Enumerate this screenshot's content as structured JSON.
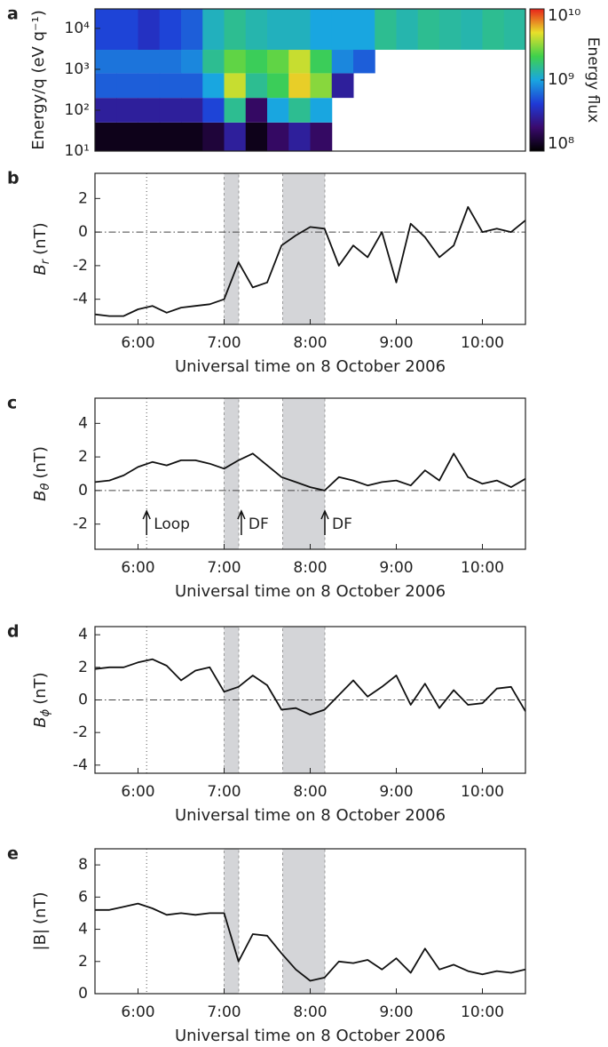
{
  "chart_data": [
    {
      "type": "heatmap",
      "panel_label": "a",
      "ylabel": "Energy/q (eV q⁻¹)",
      "xlim": [
        5.5,
        10.5
      ],
      "x_bins": [
        5.5,
        5.75,
        6.0,
        6.25,
        6.5,
        6.75,
        7.0,
        7.25,
        7.5,
        7.75,
        8.0,
        8.25,
        8.5,
        8.75,
        9.0,
        9.25,
        9.5,
        9.75,
        10.0,
        10.25,
        10.5
      ],
      "y_bins": [
        10,
        50,
        200,
        800,
        3000,
        30000
      ],
      "values": [
        [
          120000000.0,
          120000000.0,
          120000000.0,
          120000000.0,
          120000000.0,
          150000000.0,
          300000000.0,
          120000000.0,
          200000000.0,
          300000000.0,
          200000000.0,
          null,
          null,
          null,
          null,
          null,
          null,
          null,
          null,
          null
        ],
        [
          300000000.0,
          300000000.0,
          300000000.0,
          300000000.0,
          300000000.0,
          500000000.0,
          1500000000.0,
          200000000.0,
          1000000000.0,
          1500000000.0,
          1000000000.0,
          null,
          null,
          null,
          null,
          null,
          null,
          null,
          null,
          null
        ],
        [
          600000000.0,
          600000000.0,
          600000000.0,
          600000000.0,
          600000000.0,
          1000000000.0,
          4000000000.0,
          1500000000.0,
          2000000000.0,
          5000000000.0,
          3000000000.0,
          300000000.0,
          null,
          null,
          null,
          null,
          null,
          null,
          null,
          null
        ],
        [
          700000000.0,
          700000000.0,
          700000000.0,
          700000000.0,
          800000000.0,
          1500000000.0,
          2500000000.0,
          2000000000.0,
          2500000000.0,
          4000000000.0,
          2000000000.0,
          800000000.0,
          600000000.0,
          null,
          null,
          null,
          null,
          null,
          null,
          null
        ],
        [
          500000000.0,
          500000000.0,
          400000000.0,
          500000000.0,
          600000000.0,
          1200000000.0,
          1500000000.0,
          1300000000.0,
          1200000000.0,
          1200000000.0,
          1000000000.0,
          1000000000.0,
          1000000000.0,
          1500000000.0,
          1300000000.0,
          1500000000.0,
          1400000000.0,
          1300000000.0,
          1500000000.0,
          1400000000.0
        ]
      ],
      "log_y": true,
      "ylim": [
        10,
        30000
      ],
      "yticks": [
        {
          "value": 10,
          "label": "10¹"
        },
        {
          "value": 100,
          "label": "10²"
        },
        {
          "value": 1000,
          "label": "10³"
        },
        {
          "value": 10000,
          "label": "10⁴"
        }
      ],
      "log_z": true,
      "zlim": [
        100000000.0,
        10000000000.0
      ],
      "zticks": [
        {
          "value": 100000000.0,
          "label": "10⁸"
        },
        {
          "value": 1000000000.0,
          "label": "10⁹"
        },
        {
          "value": 10000000000.0,
          "label": "10¹⁰"
        }
      ],
      "zlabel": "Energy flux",
      "colormap": [
        "#000000",
        "#3a0a6e",
        "#1f3ad6",
        "#19a6e0",
        "#3fd14b",
        "#e8e02a",
        "#e8231a"
      ]
    },
    {
      "type": "line",
      "panel_label": "b",
      "ylabel": {
        "symbol": "B",
        "sub": "r",
        "unit": "(nT)"
      },
      "xlabel": "Universal time on 8 October 2006",
      "x": [
        5.5,
        5.667,
        5.833,
        6,
        6.167,
        6.333,
        6.5,
        6.667,
        6.833,
        7,
        7.167,
        7.333,
        7.5,
        7.667,
        7.833,
        8,
        8.167,
        8.333,
        8.5,
        8.667,
        8.833,
        9,
        9.167,
        9.333,
        9.5,
        9.667,
        9.833,
        10,
        10.167,
        10.333,
        10.5
      ],
      "series": [
        {
          "color": "#111111",
          "values": [
            -4.9,
            -5.0,
            -5.0,
            -4.6,
            -4.4,
            -4.8,
            -4.5,
            -4.4,
            -4.3,
            -4.0,
            -1.8,
            -3.3,
            -3.0,
            -0.8,
            -0.2,
            0.3,
            0.2,
            -2.0,
            -0.8,
            -1.5,
            0.0,
            -3.0,
            0.5,
            -0.3,
            -1.5,
            -0.8,
            1.5,
            0.0,
            0.2,
            0.0,
            0.7
          ]
        }
      ],
      "xlim": [
        5.5,
        10.5
      ],
      "xticks": [
        {
          "value": 6,
          "label": "6:00"
        },
        {
          "value": 7,
          "label": "7:00"
        },
        {
          "value": 8,
          "label": "8:00"
        },
        {
          "value": 9,
          "label": "9:00"
        },
        {
          "value": 10,
          "label": "10:00"
        }
      ],
      "ylim": [
        -5.5,
        3.5
      ],
      "yticks": [
        -4,
        -2,
        0,
        2
      ],
      "shaded_regions": [
        [
          7.0,
          7.17
        ],
        [
          7.68,
          8.17
        ]
      ],
      "reference_line": 6.1,
      "zero_line": true
    },
    {
      "type": "line",
      "panel_label": "c",
      "ylabel": {
        "symbol": "B",
        "sub": "θ",
        "unit": "(nT)"
      },
      "xlabel": "Universal time on 8 October 2006",
      "x": [
        5.5,
        5.667,
        5.833,
        6,
        6.167,
        6.333,
        6.5,
        6.667,
        6.833,
        7,
        7.167,
        7.333,
        7.5,
        7.667,
        7.833,
        8,
        8.167,
        8.333,
        8.5,
        8.667,
        8.833,
        9,
        9.167,
        9.333,
        9.5,
        9.667,
        9.833,
        10,
        10.167,
        10.333,
        10.5
      ],
      "series": [
        {
          "color": "#111111",
          "values": [
            0.5,
            0.6,
            0.9,
            1.4,
            1.7,
            1.5,
            1.8,
            1.8,
            1.6,
            1.3,
            1.8,
            2.2,
            1.5,
            0.8,
            0.5,
            0.2,
            0.0,
            0.8,
            0.6,
            0.3,
            0.5,
            0.6,
            0.3,
            1.2,
            0.6,
            2.2,
            0.8,
            0.4,
            0.6,
            0.2,
            0.7
          ]
        }
      ],
      "xlim": [
        5.5,
        10.5
      ],
      "xticks": [
        {
          "value": 6,
          "label": "6:00"
        },
        {
          "value": 7,
          "label": "7:00"
        },
        {
          "value": 8,
          "label": "8:00"
        },
        {
          "value": 9,
          "label": "9:00"
        },
        {
          "value": 10,
          "label": "10:00"
        }
      ],
      "ylim": [
        -3.5,
        5.5
      ],
      "yticks": [
        -2,
        0,
        2,
        4
      ],
      "shaded_regions": [
        [
          7.0,
          7.17
        ],
        [
          7.68,
          8.17
        ]
      ],
      "reference_line": 6.1,
      "zero_line": true,
      "annotations": [
        {
          "text": "Loop",
          "x": 6.1
        },
        {
          "text": "DF",
          "x": 7.2
        },
        {
          "text": "DF",
          "x": 8.17
        }
      ]
    },
    {
      "type": "line",
      "panel_label": "d",
      "ylabel": {
        "symbol": "B",
        "sub": "ϕ",
        "unit": "(nT)"
      },
      "xlabel": "Universal time on 8 October 2006",
      "x": [
        5.5,
        5.667,
        5.833,
        6,
        6.167,
        6.333,
        6.5,
        6.667,
        6.833,
        7,
        7.167,
        7.333,
        7.5,
        7.667,
        7.833,
        8,
        8.167,
        8.333,
        8.5,
        8.667,
        8.833,
        9,
        9.167,
        9.333,
        9.5,
        9.667,
        9.833,
        10,
        10.167,
        10.333,
        10.5
      ],
      "series": [
        {
          "color": "#111111",
          "values": [
            1.9,
            2.0,
            2.0,
            2.3,
            2.5,
            2.1,
            1.2,
            1.8,
            2.0,
            0.5,
            0.8,
            1.5,
            0.9,
            -0.6,
            -0.5,
            -0.9,
            -0.6,
            0.3,
            1.2,
            0.2,
            0.8,
            1.5,
            -0.3,
            1.0,
            -0.5,
            0.6,
            -0.3,
            -0.2,
            0.7,
            0.8,
            -0.7
          ]
        }
      ],
      "xlim": [
        5.5,
        10.5
      ],
      "xticks": [
        {
          "value": 6,
          "label": "6:00"
        },
        {
          "value": 7,
          "label": "7:00"
        },
        {
          "value": 8,
          "label": "8:00"
        },
        {
          "value": 9,
          "label": "9:00"
        },
        {
          "value": 10,
          "label": "10:00"
        }
      ],
      "ylim": [
        -4.5,
        4.5
      ],
      "yticks": [
        -4,
        -2,
        0,
        2,
        4
      ],
      "shaded_regions": [
        [
          7.0,
          7.17
        ],
        [
          7.68,
          8.17
        ]
      ],
      "reference_line": 6.1,
      "zero_line": true
    },
    {
      "type": "line",
      "panel_label": "e",
      "ylabel": {
        "symbol": "|B|",
        "unit": "(nT)"
      },
      "xlabel": "Universal time on 8 October 2006",
      "x": [
        5.5,
        5.667,
        5.833,
        6,
        6.167,
        6.333,
        6.5,
        6.667,
        6.833,
        7,
        7.167,
        7.333,
        7.5,
        7.667,
        7.833,
        8,
        8.167,
        8.333,
        8.5,
        8.667,
        8.833,
        9,
        9.167,
        9.333,
        9.5,
        9.667,
        9.833,
        10,
        10.167,
        10.333,
        10.5
      ],
      "series": [
        {
          "color": "#111111",
          "values": [
            5.2,
            5.2,
            5.4,
            5.6,
            5.3,
            4.9,
            5.0,
            4.9,
            5.0,
            5.0,
            2.0,
            3.7,
            3.6,
            2.5,
            1.5,
            0.8,
            1.0,
            2.0,
            1.9,
            2.1,
            1.5,
            2.2,
            1.3,
            2.8,
            1.5,
            1.8,
            1.4,
            1.2,
            1.4,
            1.3,
            1.5
          ]
        }
      ],
      "xlim": [
        5.5,
        10.5
      ],
      "xticks": [
        {
          "value": 6,
          "label": "6:00"
        },
        {
          "value": 7,
          "label": "7:00"
        },
        {
          "value": 8,
          "label": "8:00"
        },
        {
          "value": 9,
          "label": "9:00"
        },
        {
          "value": 10,
          "label": "10:00"
        }
      ],
      "ylim": [
        0,
        9
      ],
      "yticks": [
        0,
        2,
        4,
        6,
        8
      ],
      "shaded_regions": [
        [
          7.0,
          7.17
        ],
        [
          7.68,
          8.17
        ]
      ],
      "reference_line": 6.1,
      "zero_line": false
    }
  ]
}
